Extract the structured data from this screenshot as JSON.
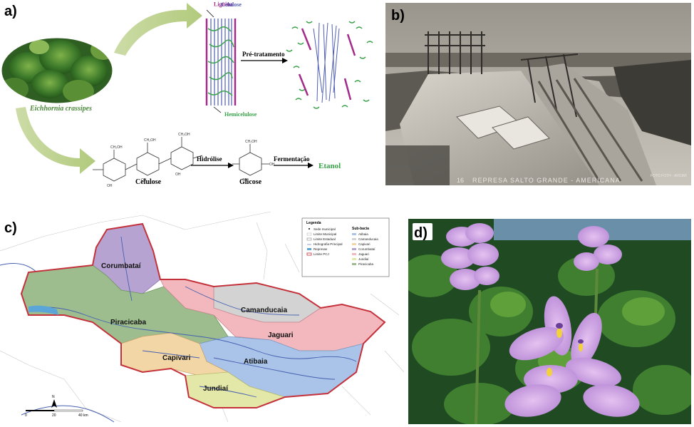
{
  "panel_a": {
    "label": "a)",
    "plant_caption": "Eichhornia crassipes",
    "lignina": "Lignina",
    "celulose_top": "Celulose",
    "hemicelulose": "Hemicelulose",
    "pretratamento": "Pré-tratamento",
    "pretratamento_arrow": "Pré-tratamento",
    "celulose": "Celulose",
    "hidrolise": "Hidrólise",
    "glicose": "Glicose",
    "fermentacao": "Fermentação",
    "etanol": "Etanol"
  },
  "panel_b": {
    "label": "b)",
    "caption_num": "16",
    "caption": "REPRESA SALTO GRANDE - AMERICANA",
    "caption_small": "FOTO FOTH - ARGIMI"
  },
  "panel_c": {
    "label": "c)",
    "regions": [
      "Corumbataí",
      "Piracicaba",
      "Camanducaia",
      "Jaguari",
      "Capivari",
      "Atibaia",
      "Jundiaí"
    ],
    "legend_title": "Legenda",
    "legend_items": [
      "Sede municipal",
      "Limite Municipal",
      "Limite Estadual",
      "Hidrografia Principal",
      "Represas",
      "Limite PCJ"
    ],
    "sub_title": "Sub-bacia",
    "sub_items": [
      "Atibaia",
      "Camanducaia",
      "Capivari",
      "Corumbataí",
      "Jaguari",
      "Jundiaí",
      "Piracicaba"
    ],
    "scale": [
      "0",
      "20",
      "40 km"
    ],
    "north": "N",
    "colors": {
      "corumbatai": "#b7a3d1",
      "piracicaba": "#9dbd8e",
      "camanducaia": "#d3d3d3",
      "jaguari": "#f2b8bd",
      "capivari": "#f3d6a6",
      "atibaia": "#a9c4e8",
      "jundiai": "#e3e7a8",
      "boundary": "#c4313b"
    }
  },
  "panel_d": {
    "label": "d)"
  }
}
